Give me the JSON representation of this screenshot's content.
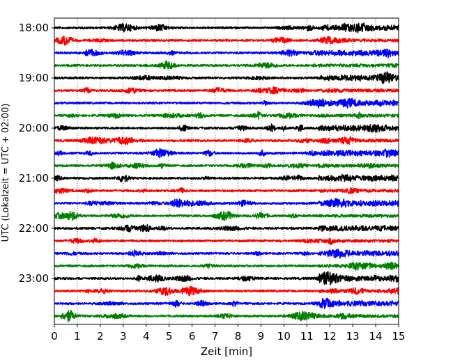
{
  "chart_data": {
    "type": "line",
    "title": "",
    "xlabel": "Zeit  [min]",
    "ylabel": "UTC (Lokalzeit = UTC + 02:00)",
    "xlim": [
      0,
      15
    ],
    "x_ticks": [
      "0",
      "1",
      "2",
      "3",
      "4",
      "5",
      "6",
      "7",
      "8",
      "9",
      "10",
      "11",
      "12",
      "13",
      "14",
      "15"
    ],
    "y_tick_labels": [
      "18:00",
      "19:00",
      "20:00",
      "21:00",
      "22:00",
      "23:00"
    ],
    "grid": "vertical-dotted",
    "trace_colors": [
      "#000000",
      "#ff0000",
      "#0000ff",
      "#008000"
    ],
    "series": [
      {
        "start": "18:00",
        "color": "#000000"
      },
      {
        "start": "18:15",
        "color": "#ff0000"
      },
      {
        "start": "18:30",
        "color": "#0000ff"
      },
      {
        "start": "18:45",
        "color": "#008000"
      },
      {
        "start": "19:00",
        "color": "#000000"
      },
      {
        "start": "19:15",
        "color": "#ff0000"
      },
      {
        "start": "19:30",
        "color": "#0000ff"
      },
      {
        "start": "19:45",
        "color": "#008000"
      },
      {
        "start": "20:00",
        "color": "#000000"
      },
      {
        "start": "20:15",
        "color": "#ff0000"
      },
      {
        "start": "20:30",
        "color": "#0000ff"
      },
      {
        "start": "20:45",
        "color": "#008000"
      },
      {
        "start": "21:00",
        "color": "#000000"
      },
      {
        "start": "21:15",
        "color": "#ff0000"
      },
      {
        "start": "21:30",
        "color": "#0000ff"
      },
      {
        "start": "21:45",
        "color": "#008000"
      },
      {
        "start": "22:00",
        "color": "#000000"
      },
      {
        "start": "22:15",
        "color": "#ff0000"
      },
      {
        "start": "22:30",
        "color": "#0000ff"
      },
      {
        "start": "22:45",
        "color": "#008000"
      },
      {
        "start": "23:00",
        "color": "#000000"
      },
      {
        "start": "23:15",
        "color": "#ff0000"
      },
      {
        "start": "23:30",
        "color": "#0000ff"
      },
      {
        "start": "23:45",
        "color": "#008000"
      }
    ]
  }
}
